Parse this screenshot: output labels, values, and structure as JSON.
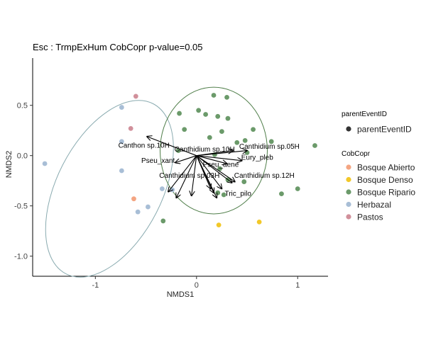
{
  "chart_data": {
    "type": "scatter",
    "title": "Esc : TrmpExHum CobCopr  p-value=0.05",
    "xlabel": "NMDS1",
    "ylabel": "NMDS2",
    "xlim": [
      -1.62,
      1.3
    ],
    "ylim": [
      -1.2,
      0.97
    ],
    "xticks": [
      -1,
      0,
      1
    ],
    "xtick_labels": [
      "-1",
      "0",
      "1"
    ],
    "yticks": [
      0.5,
      0.0,
      -0.5,
      -1.0
    ],
    "ytick_labels": [
      "0.5",
      "0.0",
      "-0.5",
      "-1.0"
    ],
    "grid": false,
    "legend_placement": "right",
    "legend_parent": {
      "title": "parentEventID",
      "label": "parentEventID",
      "color": "#333333"
    },
    "legend_groups_title": "CobCopr",
    "series": [
      {
        "name": "Bosque Abierto",
        "color": "#F4A582",
        "points": [
          [
            -0.62,
            -0.43
          ]
        ]
      },
      {
        "name": "Bosque Denso",
        "color": "#F2C829",
        "points": [
          [
            0.22,
            -0.69
          ],
          [
            0.62,
            -0.66
          ]
        ]
      },
      {
        "name": "Bosque Ripario",
        "color": "#6B9A6A",
        "points": [
          [
            0.17,
            0.6
          ],
          [
            0.3,
            0.58
          ],
          [
            -0.17,
            0.42
          ],
          [
            0.02,
            0.45
          ],
          [
            0.09,
            0.41
          ],
          [
            0.21,
            0.39
          ],
          [
            0.31,
            0.37
          ],
          [
            -0.12,
            0.26
          ],
          [
            0.25,
            0.24
          ],
          [
            0.56,
            0.26
          ],
          [
            0.13,
            0.18
          ],
          [
            0.48,
            0.15
          ],
          [
            0.4,
            0.13
          ],
          [
            0.74,
            0.14
          ],
          [
            1.17,
            0.1
          ],
          [
            -0.18,
            0.05
          ],
          [
            0.18,
            0.01
          ],
          [
            0.5,
            0.03
          ],
          [
            0.23,
            -0.13
          ],
          [
            0.31,
            -0.24
          ],
          [
            0.47,
            -0.26
          ],
          [
            0.27,
            -0.39
          ],
          [
            0.21,
            -0.37
          ],
          [
            0.84,
            -0.38
          ],
          [
            1.0,
            -0.33
          ],
          [
            -0.33,
            -0.65
          ]
        ]
      },
      {
        "name": "Herbazal",
        "color": "#A8BED6",
        "points": [
          [
            -1.5,
            -0.08
          ],
          [
            -0.74,
            0.48
          ],
          [
            -0.74,
            0.14
          ],
          [
            -0.74,
            -0.15
          ],
          [
            -0.58,
            -0.56
          ],
          [
            -0.48,
            -0.51
          ],
          [
            -0.34,
            -0.33
          ],
          [
            -0.24,
            -0.34
          ]
        ]
      },
      {
        "name": "Pastos",
        "color": "#D1909B",
        "points": [
          [
            -0.6,
            0.59
          ],
          [
            -0.65,
            0.27
          ]
        ]
      }
    ],
    "ellipses": [
      {
        "group": "Herbazal",
        "color": "#8AABB0",
        "cx": -0.86,
        "cy": -0.33,
        "rx": 0.52,
        "ry": 0.95,
        "rotation_deg": 27
      },
      {
        "group": "Bosque Ripario",
        "color": "#4E7D48",
        "cx": 0.17,
        "cy": 0.05,
        "rx": 0.53,
        "ry": 0.63,
        "rotation_deg": 0
      }
    ],
    "vectors": [
      {
        "label": "Canthon sp.10H",
        "x": -0.49,
        "y": 0.19
      },
      {
        "label": "Pseu_xant",
        "x": -0.21,
        "y": -0.07
      },
      {
        "label": "Canthidium sp.10H",
        "x": 0.36,
        "y": 0.05
      },
      {
        "label": "Canthidium sp.05H",
        "x": 0.5,
        "y": 0.05
      },
      {
        "label": "Eury_pleb",
        "x": 0.45,
        "y": -0.05
      },
      {
        "label": "Pseu_aene",
        "x": 0.3,
        "y": -0.08
      },
      {
        "label": "Canthidium sp.03H",
        "x": -0.2,
        "y": -0.42
      },
      {
        "label": "Canthidium sp.12H",
        "x": 0.35,
        "y": -0.27
      },
      {
        "label": "Tric_pilo",
        "x": 0.2,
        "y": -0.42
      }
    ],
    "vector_extra_arrows": [
      {
        "x": -0.05,
        "y": -0.4
      },
      {
        "x": -0.28,
        "y": -0.36
      },
      {
        "x": 0.14,
        "y": -0.33
      },
      {
        "x": 0.17,
        "y": -0.37
      },
      {
        "x": 0.25,
        "y": -0.33
      },
      {
        "x": 0.38,
        "y": -0.26
      }
    ]
  }
}
